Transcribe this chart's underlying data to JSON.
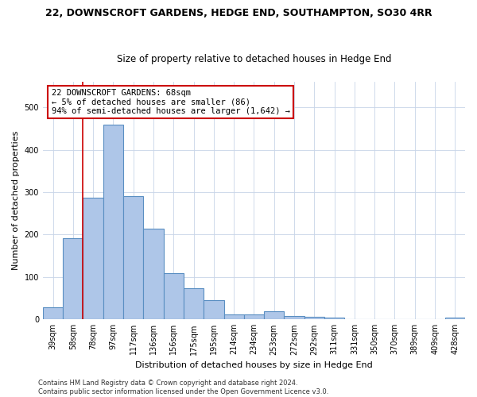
{
  "title": "22, DOWNSCROFT GARDENS, HEDGE END, SOUTHAMPTON, SO30 4RR",
  "subtitle": "Size of property relative to detached houses in Hedge End",
  "xlabel": "Distribution of detached houses by size in Hedge End",
  "ylabel": "Number of detached properties",
  "categories": [
    "39sqm",
    "58sqm",
    "78sqm",
    "97sqm",
    "117sqm",
    "136sqm",
    "156sqm",
    "175sqm",
    "195sqm",
    "214sqm",
    "234sqm",
    "253sqm",
    "272sqm",
    "292sqm",
    "311sqm",
    "331sqm",
    "350sqm",
    "370sqm",
    "389sqm",
    "409sqm",
    "428sqm"
  ],
  "values": [
    29,
    192,
    287,
    459,
    291,
    213,
    109,
    74,
    46,
    12,
    11,
    20,
    8,
    6,
    5,
    0,
    0,
    0,
    0,
    0,
    5
  ],
  "bar_color": "#aec6e8",
  "bar_edge_color": "#5a8fc2",
  "annotation_line1": "22 DOWNSCROFT GARDENS: 68sqm",
  "annotation_line2": "← 5% of detached houses are smaller (86)",
  "annotation_line3": "94% of semi-detached houses are larger (1,642) →",
  "annotation_box_color": "#ffffff",
  "annotation_box_edge_color": "#cc0000",
  "footer_line1": "Contains HM Land Registry data © Crown copyright and database right 2024.",
  "footer_line2": "Contains public sector information licensed under the Open Government Licence v3.0.",
  "ylim": [
    0,
    560
  ],
  "background_color": "#ffffff",
  "grid_color": "#c8d4e8",
  "title_fontsize": 9,
  "subtitle_fontsize": 8.5,
  "axis_label_fontsize": 8,
  "tick_fontsize": 7,
  "footer_fontsize": 6,
  "annotation_fontsize": 7.5
}
